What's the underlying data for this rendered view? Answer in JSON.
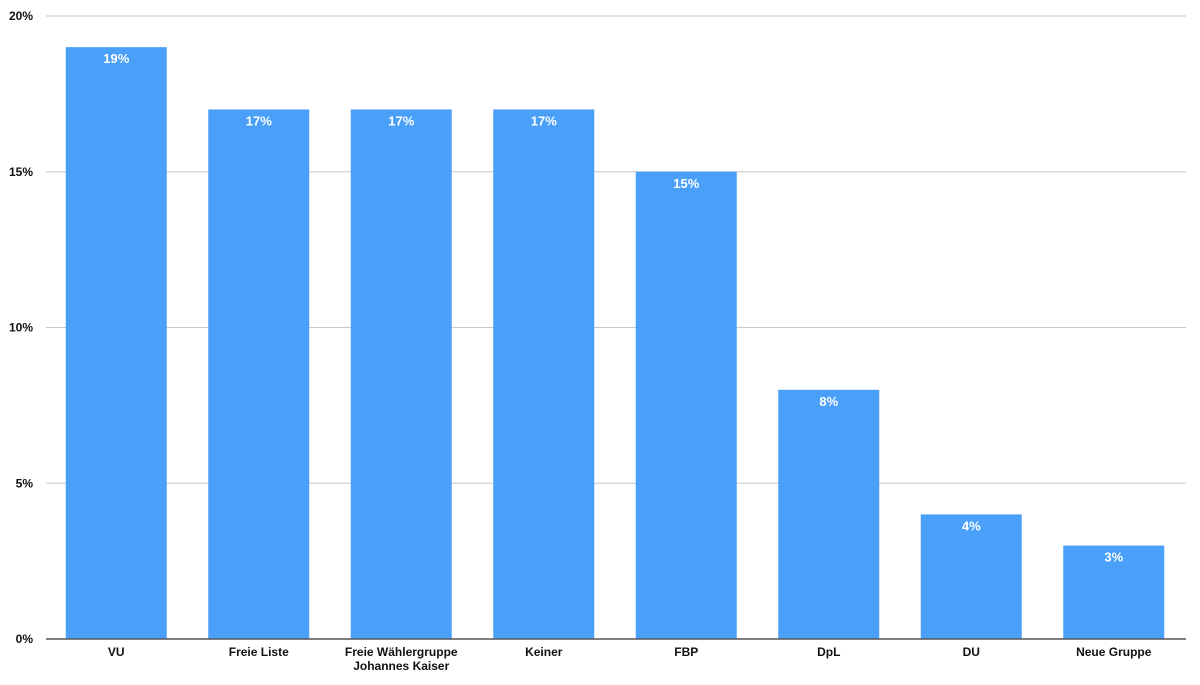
{
  "chart_data": {
    "type": "bar",
    "title": "",
    "xlabel": "",
    "ylabel": "",
    "categories": [
      "VU",
      "Freie Liste",
      "Freie Wählergruppe\nJohannes Kaiser",
      "Keiner",
      "FBP",
      "DpL",
      "DU",
      "Neue Gruppe"
    ],
    "values": [
      19,
      17,
      17,
      17,
      15,
      8,
      4,
      3
    ],
    "data_labels": [
      "19%",
      "17%",
      "17%",
      "17%",
      "15%",
      "8%",
      "4%",
      "3%"
    ],
    "ylim": [
      0,
      20
    ],
    "yticks": [
      0,
      5,
      10,
      15,
      20
    ],
    "ytick_labels": [
      "0%",
      "5%",
      "10%",
      "15%",
      "20%"
    ],
    "grid": true,
    "legend": "none",
    "bar_color": "#4aa0f8"
  }
}
